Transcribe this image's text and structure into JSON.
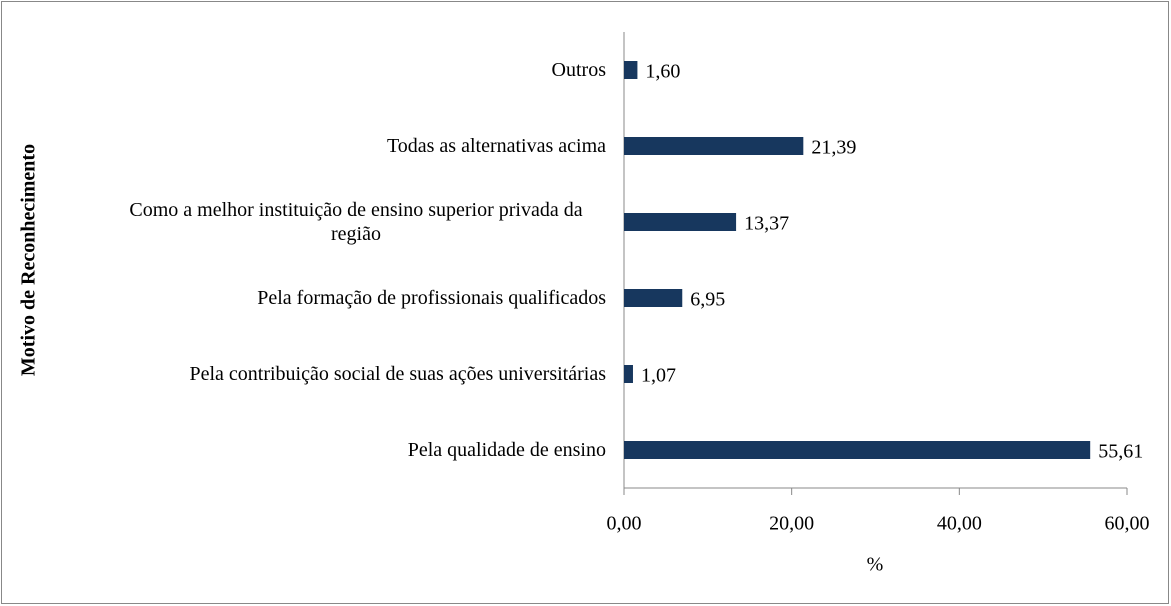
{
  "chart_data": {
    "type": "bar",
    "orientation": "horizontal",
    "ylabel": "Motivo de Reconhecimento",
    "xlabel": "%",
    "categories": [
      "Outros",
      "Todas as alternativas acima",
      "Como a melhor instituição de ensino superior privada da região",
      "Pela formação de profissionais qualificados",
      "Pela contribuição social de suas ações universitárias",
      "Pela qualidade de ensino"
    ],
    "values": [
      1.6,
      21.39,
      13.37,
      6.95,
      1.07,
      55.61
    ],
    "value_labels": [
      "1,60",
      "21,39",
      "13,37",
      "6,95",
      "1,07",
      "55,61"
    ],
    "color": "#17375e",
    "xlim": [
      0,
      60
    ],
    "xticks": [
      {
        "value": 0,
        "label": "0,00"
      },
      {
        "value": 20,
        "label": "20,00"
      },
      {
        "value": 40,
        "label": "40,00"
      },
      {
        "value": 60,
        "label": "60,00"
      }
    ]
  }
}
